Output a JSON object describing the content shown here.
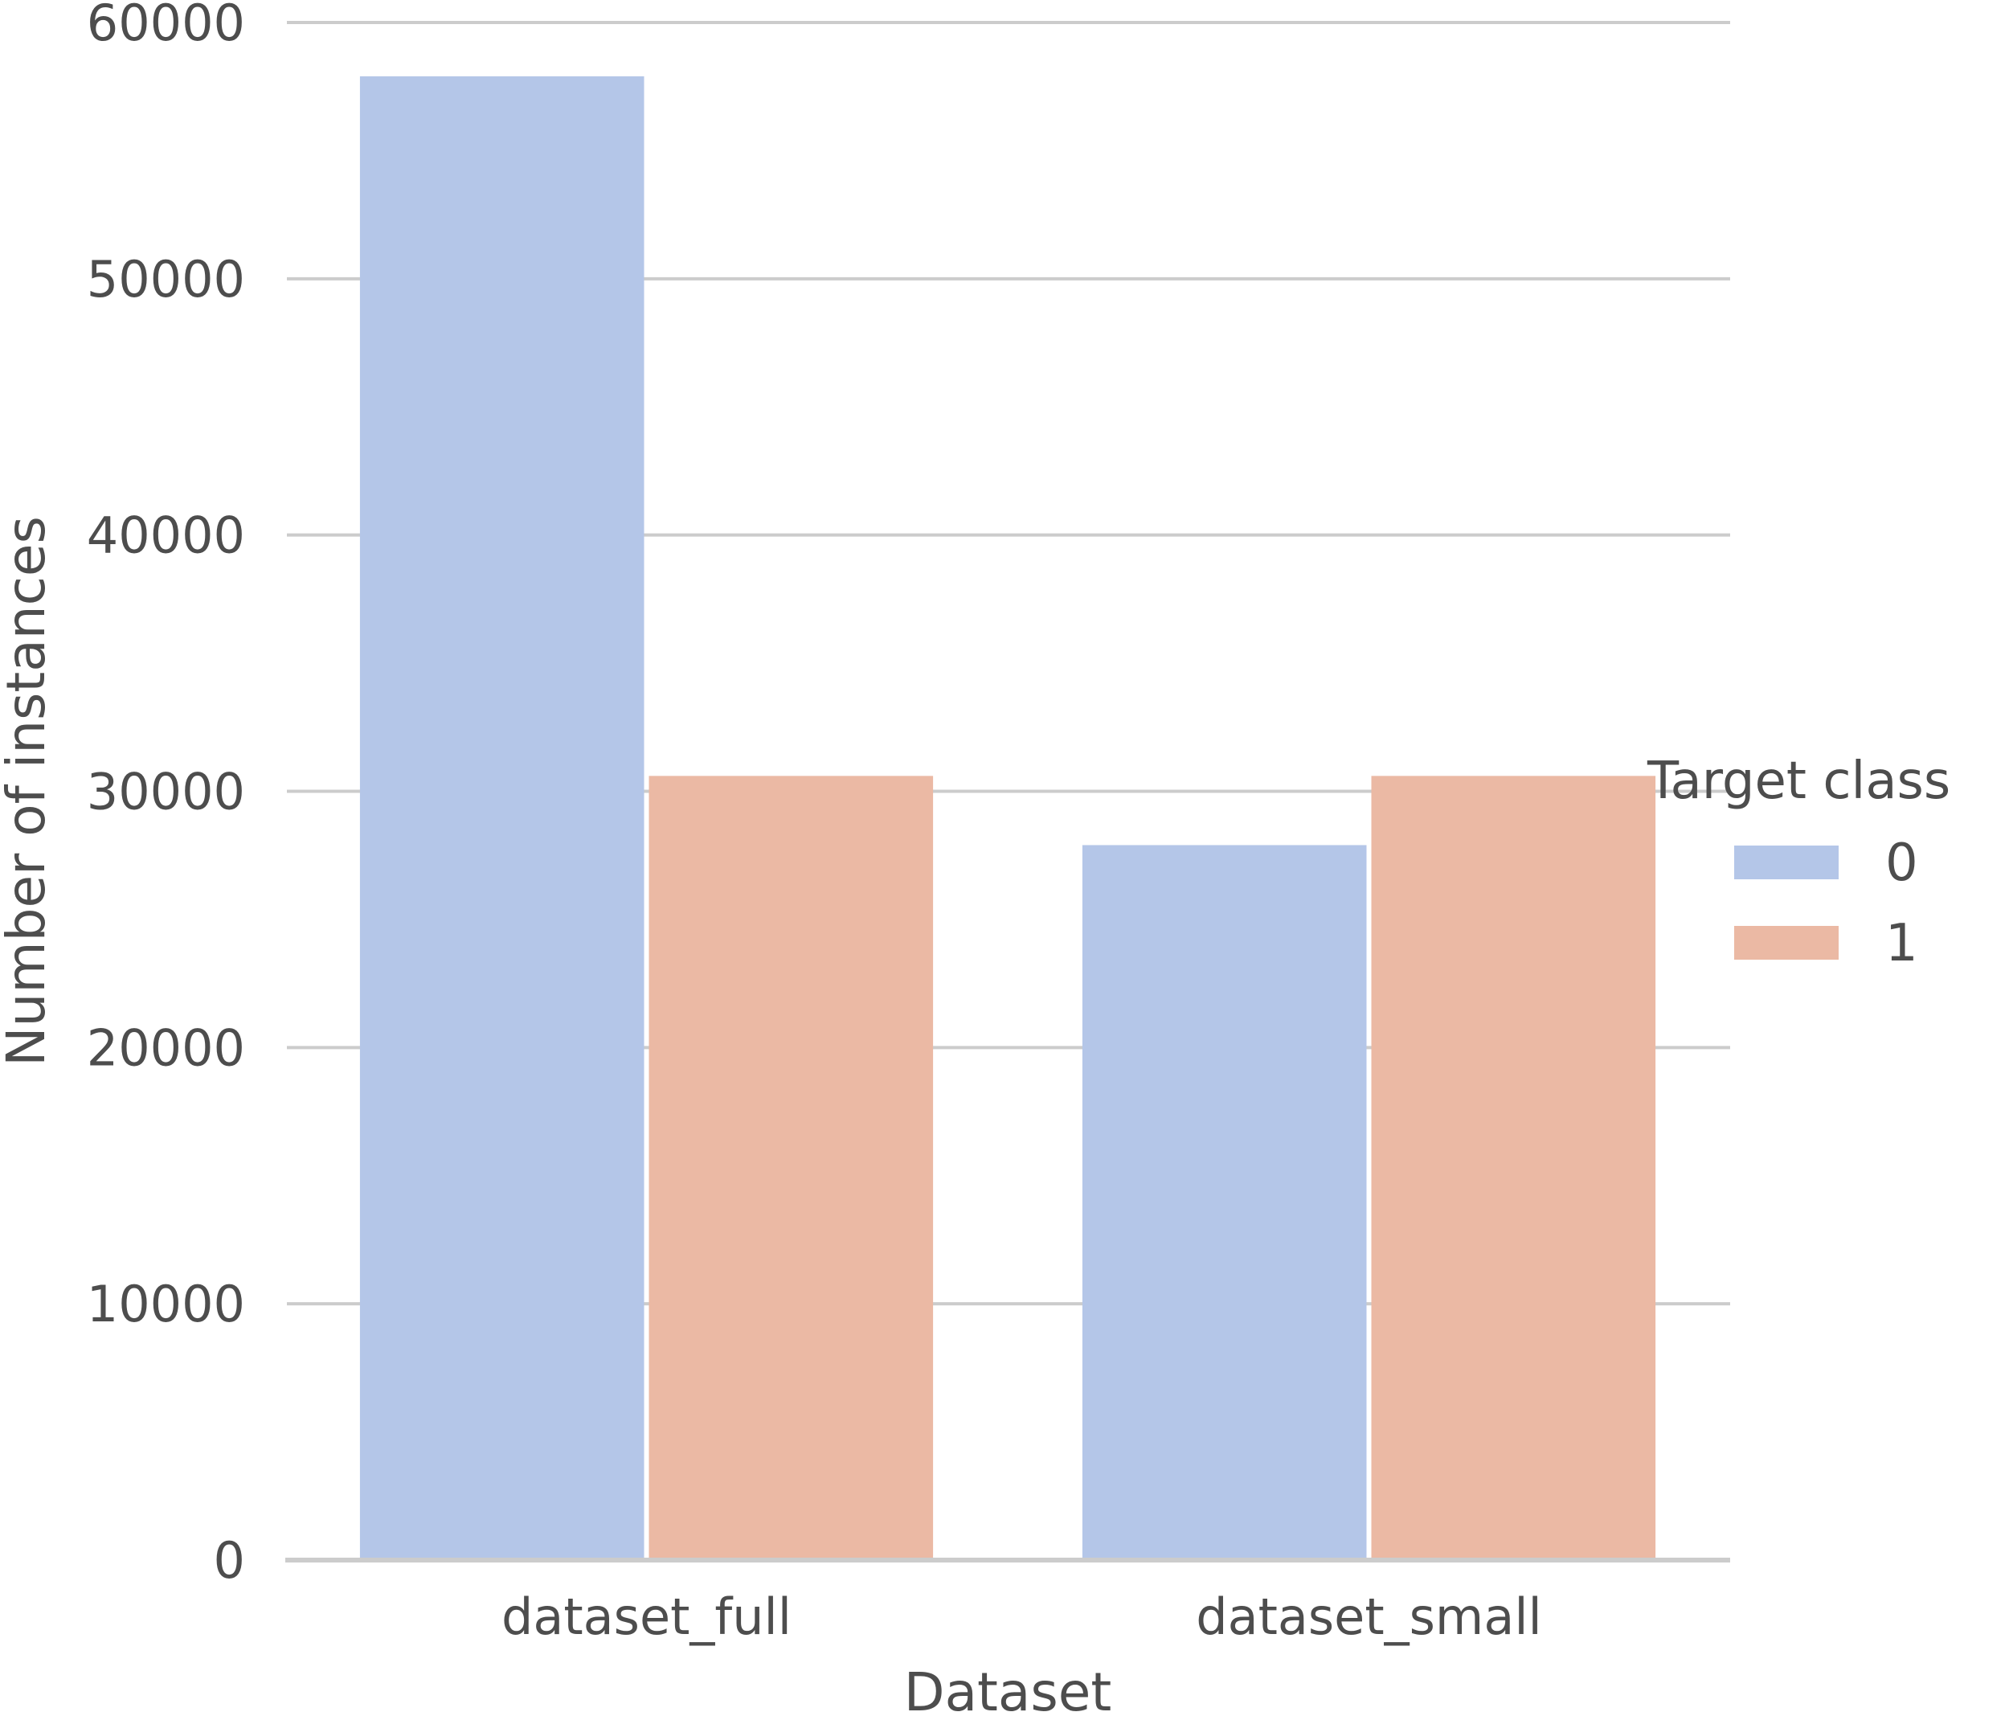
{
  "chart_data": {
    "type": "bar",
    "categories": [
      "dataset_full",
      "dataset_small"
    ],
    "series": [
      {
        "name": "0",
        "values": [
          57900,
          27900
        ],
        "color": "#b4c6e8"
      },
      {
        "name": "1",
        "values": [
          30600,
          30600
        ],
        "color": "#ebb9a4"
      }
    ],
    "xlabel": "Dataset",
    "ylabel": "Number of instances",
    "ylim": [
      0,
      60000
    ],
    "yticks": [
      0,
      10000,
      20000,
      30000,
      40000,
      50000,
      60000
    ],
    "grid": "horizontal",
    "legend": {
      "title": "Target class",
      "placement": "right"
    }
  }
}
